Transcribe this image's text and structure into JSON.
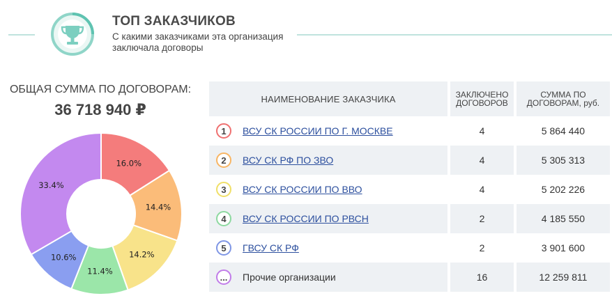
{
  "header": {
    "title": "ТОП ЗАКАЗЧИКОВ",
    "subtitle": "С какими заказчиками эта организация заключала договоры",
    "icon": "trophy-icon"
  },
  "total": {
    "label": "ОБЩАЯ СУММА ПО ДОГОВОРАМ:",
    "value": "36 718 940 ₽"
  },
  "colors": {
    "accent": "#7ccfc0",
    "rank": [
      "#ef7070",
      "#f8b563",
      "#f0df67",
      "#8dd9a0",
      "#7f96e5",
      "#c17ce9"
    ]
  },
  "table": {
    "headers": {
      "name": "НАИМЕНОВАНИЕ ЗАКАЗЧИКА",
      "count": "ЗАКЛЮЧЕНО ДОГОВОРОВ",
      "sum": "СУММА ПО ДОГОВОРАМ, руб."
    },
    "rows": [
      {
        "rank": "1",
        "name": "ВСУ СК РОССИИ ПО Г. МОСКВЕ",
        "count": "4",
        "sum": "5 864 440"
      },
      {
        "rank": "2",
        "name": "ВСУ СК РФ ПО ЗВО",
        "count": "4",
        "sum": "5 305 313"
      },
      {
        "rank": "3",
        "name": "ВСУ СК РОССИИ ПО ВВО",
        "count": "4",
        "sum": "5 202 226"
      },
      {
        "rank": "4",
        "name": "ВСУ СК РОССИИ ПО РВСН",
        "count": "2",
        "sum": "4 185 550"
      },
      {
        "rank": "5",
        "name": "ГВСУ СК РФ",
        "count": "2",
        "sum": "3 901 600"
      },
      {
        "rank": "...",
        "name": "Прочие организации",
        "count": "16",
        "sum": "12 259 811"
      }
    ]
  },
  "chart_data": {
    "type": "pie",
    "slices": [
      {
        "label": "16.0%",
        "value": 16.0,
        "color": "#f47c7c"
      },
      {
        "label": "14.4%",
        "value": 14.4,
        "color": "#fbbc79"
      },
      {
        "label": "14.2%",
        "value": 14.2,
        "color": "#f8e38a"
      },
      {
        "label": "11.4%",
        "value": 11.4,
        "color": "#9be6a9"
      },
      {
        "label": "10.6%",
        "value": 10.6,
        "color": "#8a9ef0"
      },
      {
        "label": "33.4%",
        "value": 33.4,
        "color": "#c389ef"
      }
    ]
  }
}
